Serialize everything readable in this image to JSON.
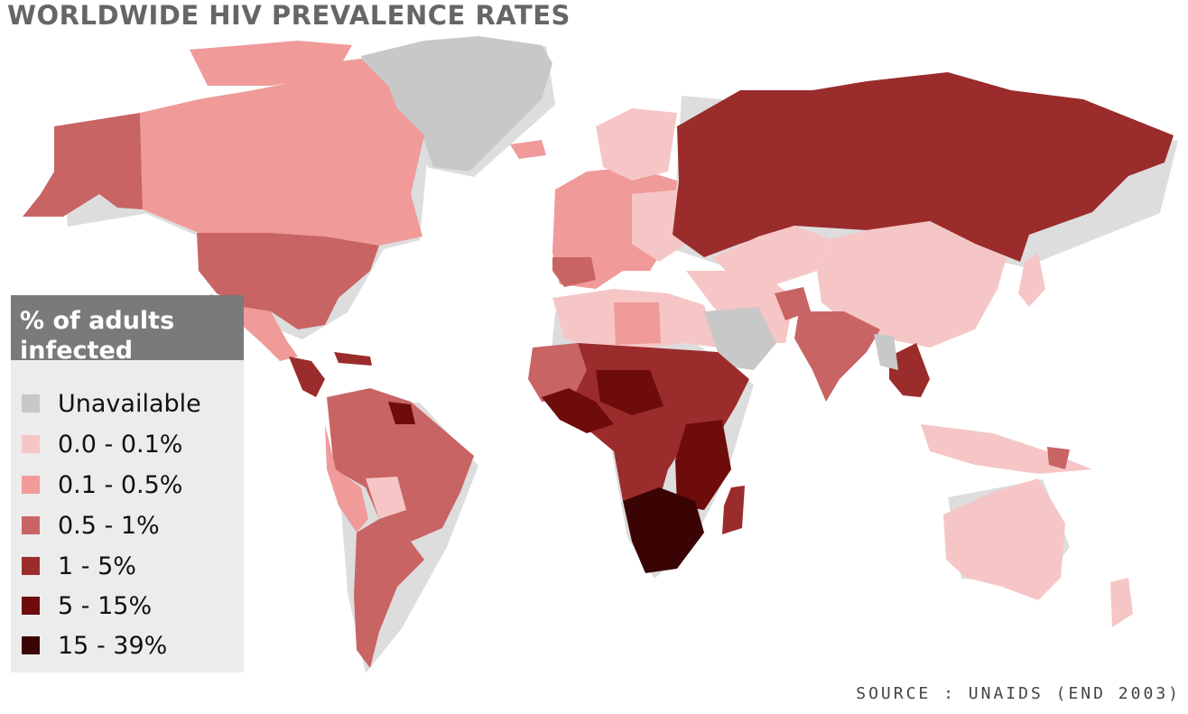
{
  "title": "WORLDWIDE HIV PREVALENCE RATES",
  "legend": {
    "header_line1": "% of adults",
    "header_line2": "infected",
    "items": [
      {
        "label": "Unavailable",
        "color": "#c8c8c8"
      },
      {
        "label": "0.0 - 0.1%",
        "color": "#f6c6c6"
      },
      {
        "label": "0.1 - 0.5%",
        "color": "#f09a9a"
      },
      {
        "label": "0.5 - 1%",
        "color": "#c96464"
      },
      {
        "label": "1 - 5%",
        "color": "#9b2c2c"
      },
      {
        "label": "5 - 15%",
        "color": "#6e0c0c"
      },
      {
        "label": "15 - 39%",
        "color": "#3a0404"
      }
    ]
  },
  "source": "SOURCE : UNAIDS (END 2003)",
  "map_regions": [
    {
      "name": "Greenland",
      "class": "Unavailable"
    },
    {
      "name": "Alaska",
      "class": "0.5 - 1%"
    },
    {
      "name": "Canada",
      "class": "0.1 - 0.5%"
    },
    {
      "name": "United States",
      "class": "0.5 - 1%"
    },
    {
      "name": "Mexico",
      "class": "0.1 - 0.5%"
    },
    {
      "name": "Central America",
      "class": "1 - 5%"
    },
    {
      "name": "Brazil",
      "class": "0.5 - 1%"
    },
    {
      "name": "Argentina",
      "class": "0.5 - 1%"
    },
    {
      "name": "Western Europe",
      "class": "0.1 - 0.5%"
    },
    {
      "name": "Russia",
      "class": "1 - 5%"
    },
    {
      "name": "China",
      "class": "0.0 - 0.1%"
    },
    {
      "name": "India",
      "class": "0.5 - 1%"
    },
    {
      "name": "North Africa",
      "class": "0.0 - 0.1%"
    },
    {
      "name": "Saudi Arabia",
      "class": "Unavailable"
    },
    {
      "name": "Central Africa",
      "class": "1 - 5%"
    },
    {
      "name": "West Africa",
      "class": "5 - 15%"
    },
    {
      "name": "Southern Africa",
      "class": "15 - 39%"
    },
    {
      "name": "Madagascar",
      "class": "1 - 5%"
    },
    {
      "name": "Australia",
      "class": "0.0 - 0.1%"
    },
    {
      "name": "Southeast Asia",
      "class": "1 - 5%"
    }
  ]
}
